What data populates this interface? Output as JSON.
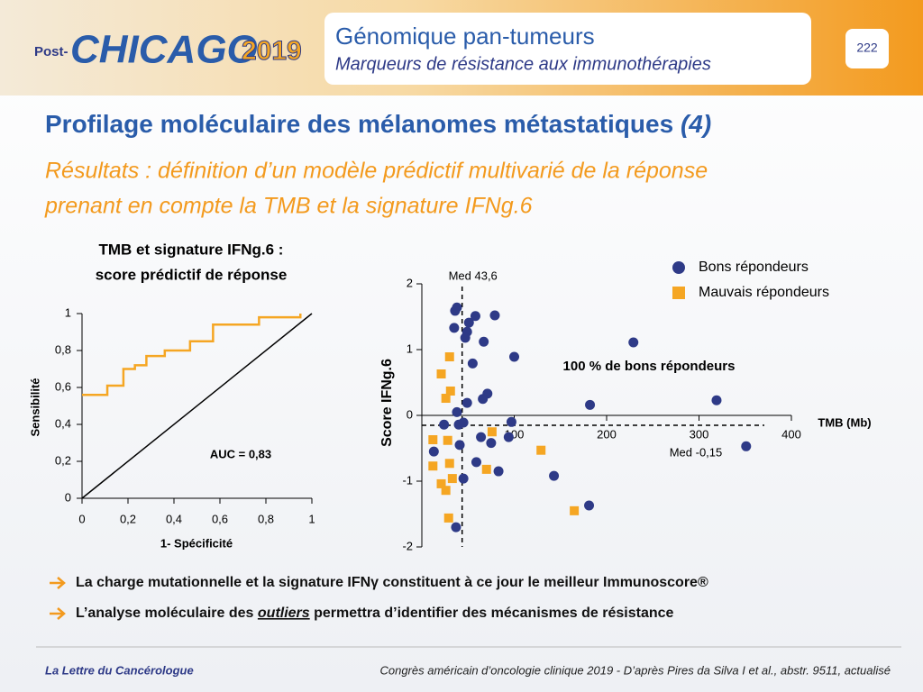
{
  "header": {
    "logo": [
      "Post-",
      "CHICAGO",
      "2019"
    ],
    "title": "Génomique pan-tumeurs",
    "subtitle": "Marqueurs de résistance aux immunothérapies",
    "page": 222
  },
  "slide": {
    "title": "Profilage moléculaire des mélanomes métastatiques",
    "title_suffix": "(4)",
    "subtitle_lines": [
      "Résultats : définition d’un modèle prédictif multivarié de la réponse",
      "prenant en compte la TMB et la signature IFNg.6"
    ]
  },
  "chart_data": [
    {
      "type": "line",
      "title": [
        "TMB et signature IFNg.6 :",
        "score prédictif de réponse"
      ],
      "x_label": "1- Spécificité",
      "y_label": "Sensibilité",
      "annotation": "AUC = 0,83",
      "color": "#f5a623",
      "x": [
        0,
        0.11,
        0.11,
        0.18,
        0.18,
        0.23,
        0.23,
        0.28,
        0.28,
        0.36,
        0.36,
        0.47,
        0.47,
        0.57,
        0.57,
        0.77,
        0.77,
        0.95,
        0.95
      ],
      "values": [
        0.56,
        0.56,
        0.61,
        0.61,
        0.7,
        0.7,
        0.72,
        0.72,
        0.77,
        0.77,
        0.8,
        0.8,
        0.85,
        0.85,
        0.94,
        0.94,
        0.98,
        0.98,
        1
      ],
      "xlim": [
        0,
        1
      ],
      "ylim": [
        0,
        1
      ],
      "xticks": [
        0,
        {
          "value": 0.2,
          "label": "0,2"
        },
        {
          "value": 0.4,
          "label": "0,4"
        },
        {
          "value": 0.6,
          "label": "0,6"
        },
        {
          "value": 0.8,
          "label": "0,8"
        },
        1
      ],
      "yticks": [
        0,
        {
          "value": 0.2,
          "label": "0,2"
        },
        {
          "value": 0.4,
          "label": "0,4"
        },
        {
          "value": 0.6,
          "label": "0,6"
        },
        {
          "value": 0.8,
          "label": "0,8"
        },
        1
      ]
    },
    {
      "type": "scatter",
      "x_label": "TMB (Mb)",
      "y_label": "Score IFNg.6",
      "annotation": "100 % de bons répondeurs",
      "legend": "top-right",
      "xlim": [
        0,
        400
      ],
      "ylim": [
        -2,
        2
      ],
      "xticks": [
        100,
        200,
        300,
        400
      ],
      "yticks": [
        -2,
        -1,
        0,
        1,
        2
      ],
      "reference_lines": [
        {
          "axis": "x",
          "value": 43.6,
          "label": "Med 43,6"
        },
        {
          "axis": "y",
          "value": -0.15,
          "label": "Med -0,15"
        }
      ],
      "series": [
        {
          "name": "Bons répondeurs",
          "color": "#2e3a87",
          "marker": "circle",
          "x": [
            36,
            38,
            35,
            51,
            58,
            79,
            49,
            47,
            67,
            55,
            100,
            229,
            71,
            66,
            49,
            182,
            319,
            38,
            24,
            40,
            45,
            97,
            94,
            64,
            75,
            13,
            41,
            59,
            83,
            143,
            45,
            181,
            37,
            351
          ],
          "values": [
            1.59,
            1.64,
            1.33,
            1.41,
            1.51,
            1.52,
            1.27,
            1.18,
            1.12,
            0.79,
            0.89,
            1.11,
            0.33,
            0.25,
            0.19,
            0.16,
            0.23,
            0.05,
            -0.14,
            -0.14,
            -0.11,
            -0.1,
            -0.33,
            -0.33,
            -0.42,
            -0.55,
            -0.45,
            -0.71,
            -0.85,
            -0.92,
            -0.96,
            -1.37,
            -1.7,
            -0.47
          ]
        },
        {
          "name": "Mauvais répondeurs",
          "color": "#f5a623",
          "marker": "square",
          "x": [
            30,
            21,
            31,
            26,
            12,
            28,
            76,
            129,
            30,
            70,
            12,
            33,
            21,
            26,
            165,
            29
          ],
          "values": [
            0.89,
            0.63,
            0.37,
            0.26,
            -0.37,
            -0.38,
            -0.25,
            -0.53,
            -0.73,
            -0.82,
            -0.77,
            -0.96,
            -1.04,
            -1.14,
            -1.45,
            -1.56
          ]
        }
      ]
    }
  ],
  "bullets": [
    {
      "text": "La charge mutationnelle et la signature IFNγ constituent à ce jour le meilleur Immunoscore®"
    },
    {
      "before": "L’analyse moléculaire des ",
      "emphasis": "outliers",
      "after": " permettra d’identifier des mécanismes de résistance"
    }
  ],
  "footer": {
    "left": "La Lettre du Cancérologue",
    "right": "Congrès américain d’oncologie clinique 2019 - D’après Pires da Silva I et al., abstr. 9511, actualisé"
  }
}
